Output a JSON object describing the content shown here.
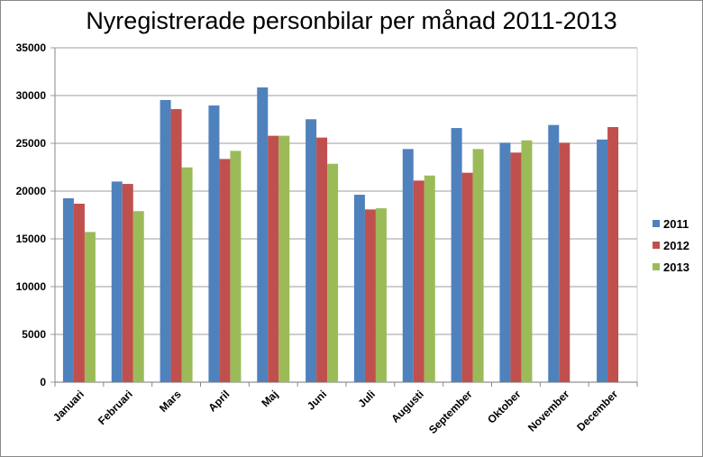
{
  "chart_data": {
    "type": "bar",
    "title": "Nyregistrerade personbilar per månad 2011-2013",
    "xlabel": "",
    "ylabel": "",
    "ylim": [
      0,
      35000
    ],
    "yticks": [
      0,
      5000,
      10000,
      15000,
      20000,
      25000,
      30000,
      35000
    ],
    "grid": true,
    "legend_position": "right",
    "categories": [
      "Januari",
      "Februari",
      "Mars",
      "April",
      "Maj",
      "Juni",
      "Juli",
      "Augusti",
      "September",
      "Oktober",
      "November",
      "December"
    ],
    "series": [
      {
        "name": "2011",
        "color": "#4f81bd",
        "values": [
          19250,
          21000,
          29530,
          28960,
          30850,
          27520,
          19620,
          24400,
          26600,
          25060,
          26920,
          25400
        ]
      },
      {
        "name": "2012",
        "color": "#c0504d",
        "values": [
          18680,
          20750,
          28580,
          23360,
          25790,
          25600,
          18080,
          21100,
          21920,
          24030,
          25060,
          26700
        ]
      },
      {
        "name": "2013",
        "color": "#9bbb59",
        "values": [
          15720,
          17900,
          22480,
          24210,
          25790,
          22860,
          18200,
          21630,
          24400,
          25310,
          null,
          null
        ]
      }
    ]
  }
}
